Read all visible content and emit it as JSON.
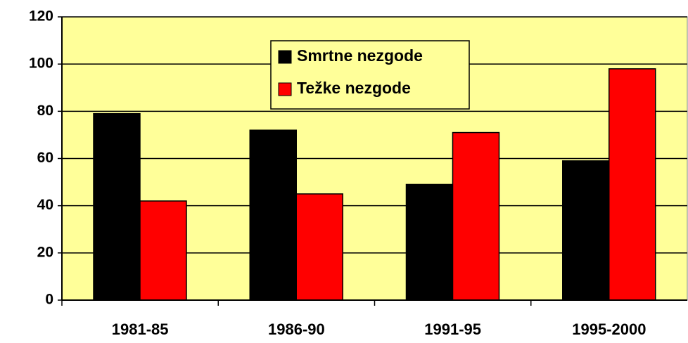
{
  "chart_data": {
    "type": "bar",
    "categories": [
      "1981-85",
      "1986-90",
      "1991-95",
      "1995-2000"
    ],
    "series": [
      {
        "name": "Smrtne nezgode",
        "color": "#000000",
        "values": [
          79,
          72,
          49,
          59
        ]
      },
      {
        "name": "Težke nezgode",
        "color": "#ff0000",
        "values": [
          42,
          45,
          71,
          98
        ]
      }
    ],
    "ylim": [
      0,
      120
    ],
    "yticks": [
      0,
      20,
      40,
      60,
      80,
      100,
      120
    ],
    "grid": true,
    "background": "#ffff99",
    "legend": "top"
  }
}
